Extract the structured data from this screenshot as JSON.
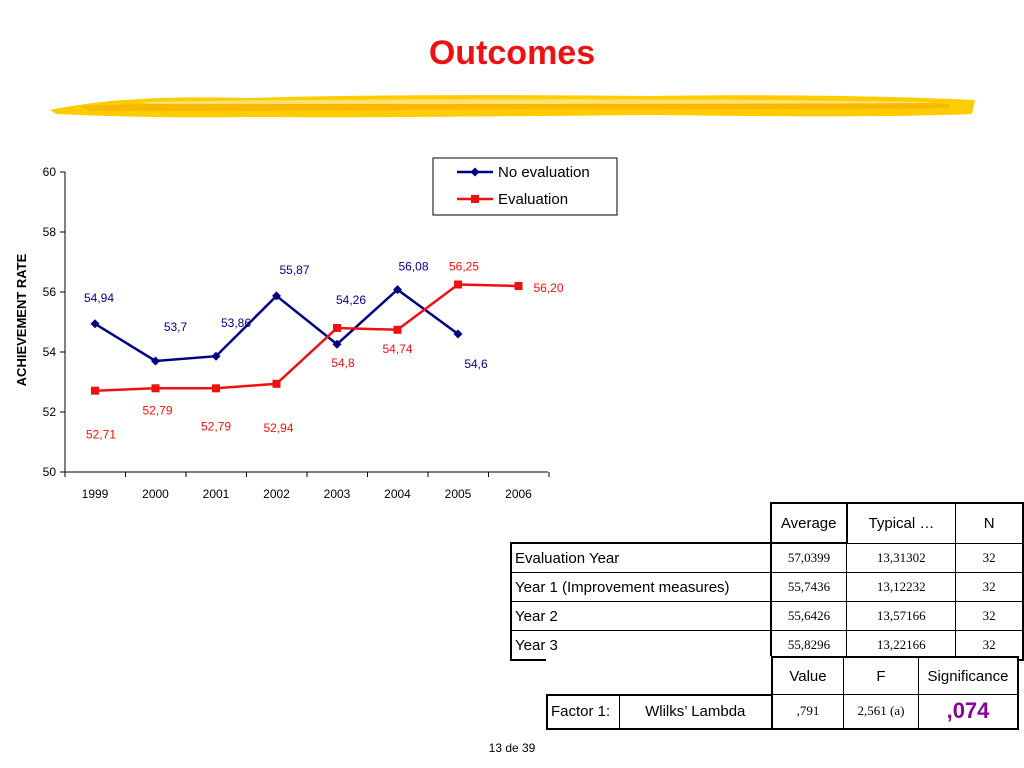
{
  "slide": {
    "title": "Outcomes",
    "page_number": "13 de 39",
    "accent_colors": {
      "title": "#ee1111",
      "brush": "#ffcc00",
      "series_no_eval": "#000080",
      "series_eval": "#ee1111",
      "significance": "#880099"
    }
  },
  "chart_data": {
    "type": "line",
    "title": "",
    "xlabel": "",
    "ylabel": "ACHIEVEMENT   RATE",
    "ylim": [
      50,
      60
    ],
    "yticks": [
      "50",
      "52",
      "54",
      "56",
      "58",
      "60"
    ],
    "categories": [
      "1999",
      "2000",
      "2001",
      "2002",
      "2003",
      "2004",
      "2005",
      "2006"
    ],
    "legend_position": "top-right",
    "grid": false,
    "series": [
      {
        "name": "No evaluation",
        "color": "#000080",
        "marker": "diamond",
        "values": [
          54.94,
          53.7,
          53.86,
          55.87,
          54.26,
          56.08,
          54.6,
          null
        ],
        "labels": [
          "54,94",
          "53,7",
          "53,86",
          "55,87",
          "54,26",
          "56,08",
          "54,6",
          null
        ]
      },
      {
        "name": "Evaluation",
        "color": "#ee1111",
        "marker": "square",
        "values": [
          52.71,
          52.79,
          52.79,
          52.94,
          54.8,
          54.74,
          56.25,
          56.2
        ],
        "labels": [
          "52,71",
          "52,79",
          "52,79",
          "52,94",
          "54,8",
          "54,74",
          "56,25",
          "56,20"
        ]
      }
    ]
  },
  "descriptive_table": {
    "headers": [
      "Average",
      "Typical …",
      "N"
    ],
    "rows": [
      {
        "label": "Evaluation Year",
        "average": "57,0399",
        "typical": "13,31302",
        "n": "32"
      },
      {
        "label": "Year 1 (Improvement measures)",
        "average": "55,7436",
        "typical": "13,12232",
        "n": "32"
      },
      {
        "label": "Year 2",
        "average": "55,6426",
        "typical": "13,57166",
        "n": "32"
      },
      {
        "label": "Year 3",
        "average": "55,8296",
        "typical": "13,22166",
        "n": "32"
      }
    ]
  },
  "test_table": {
    "headers": [
      "Value",
      "F",
      "Significance"
    ],
    "row": {
      "factor": "Factor 1:",
      "test": "Wlilks’ Lambda",
      "value": ",791",
      "f": "2,561 (a)",
      "significance": ",074"
    }
  }
}
